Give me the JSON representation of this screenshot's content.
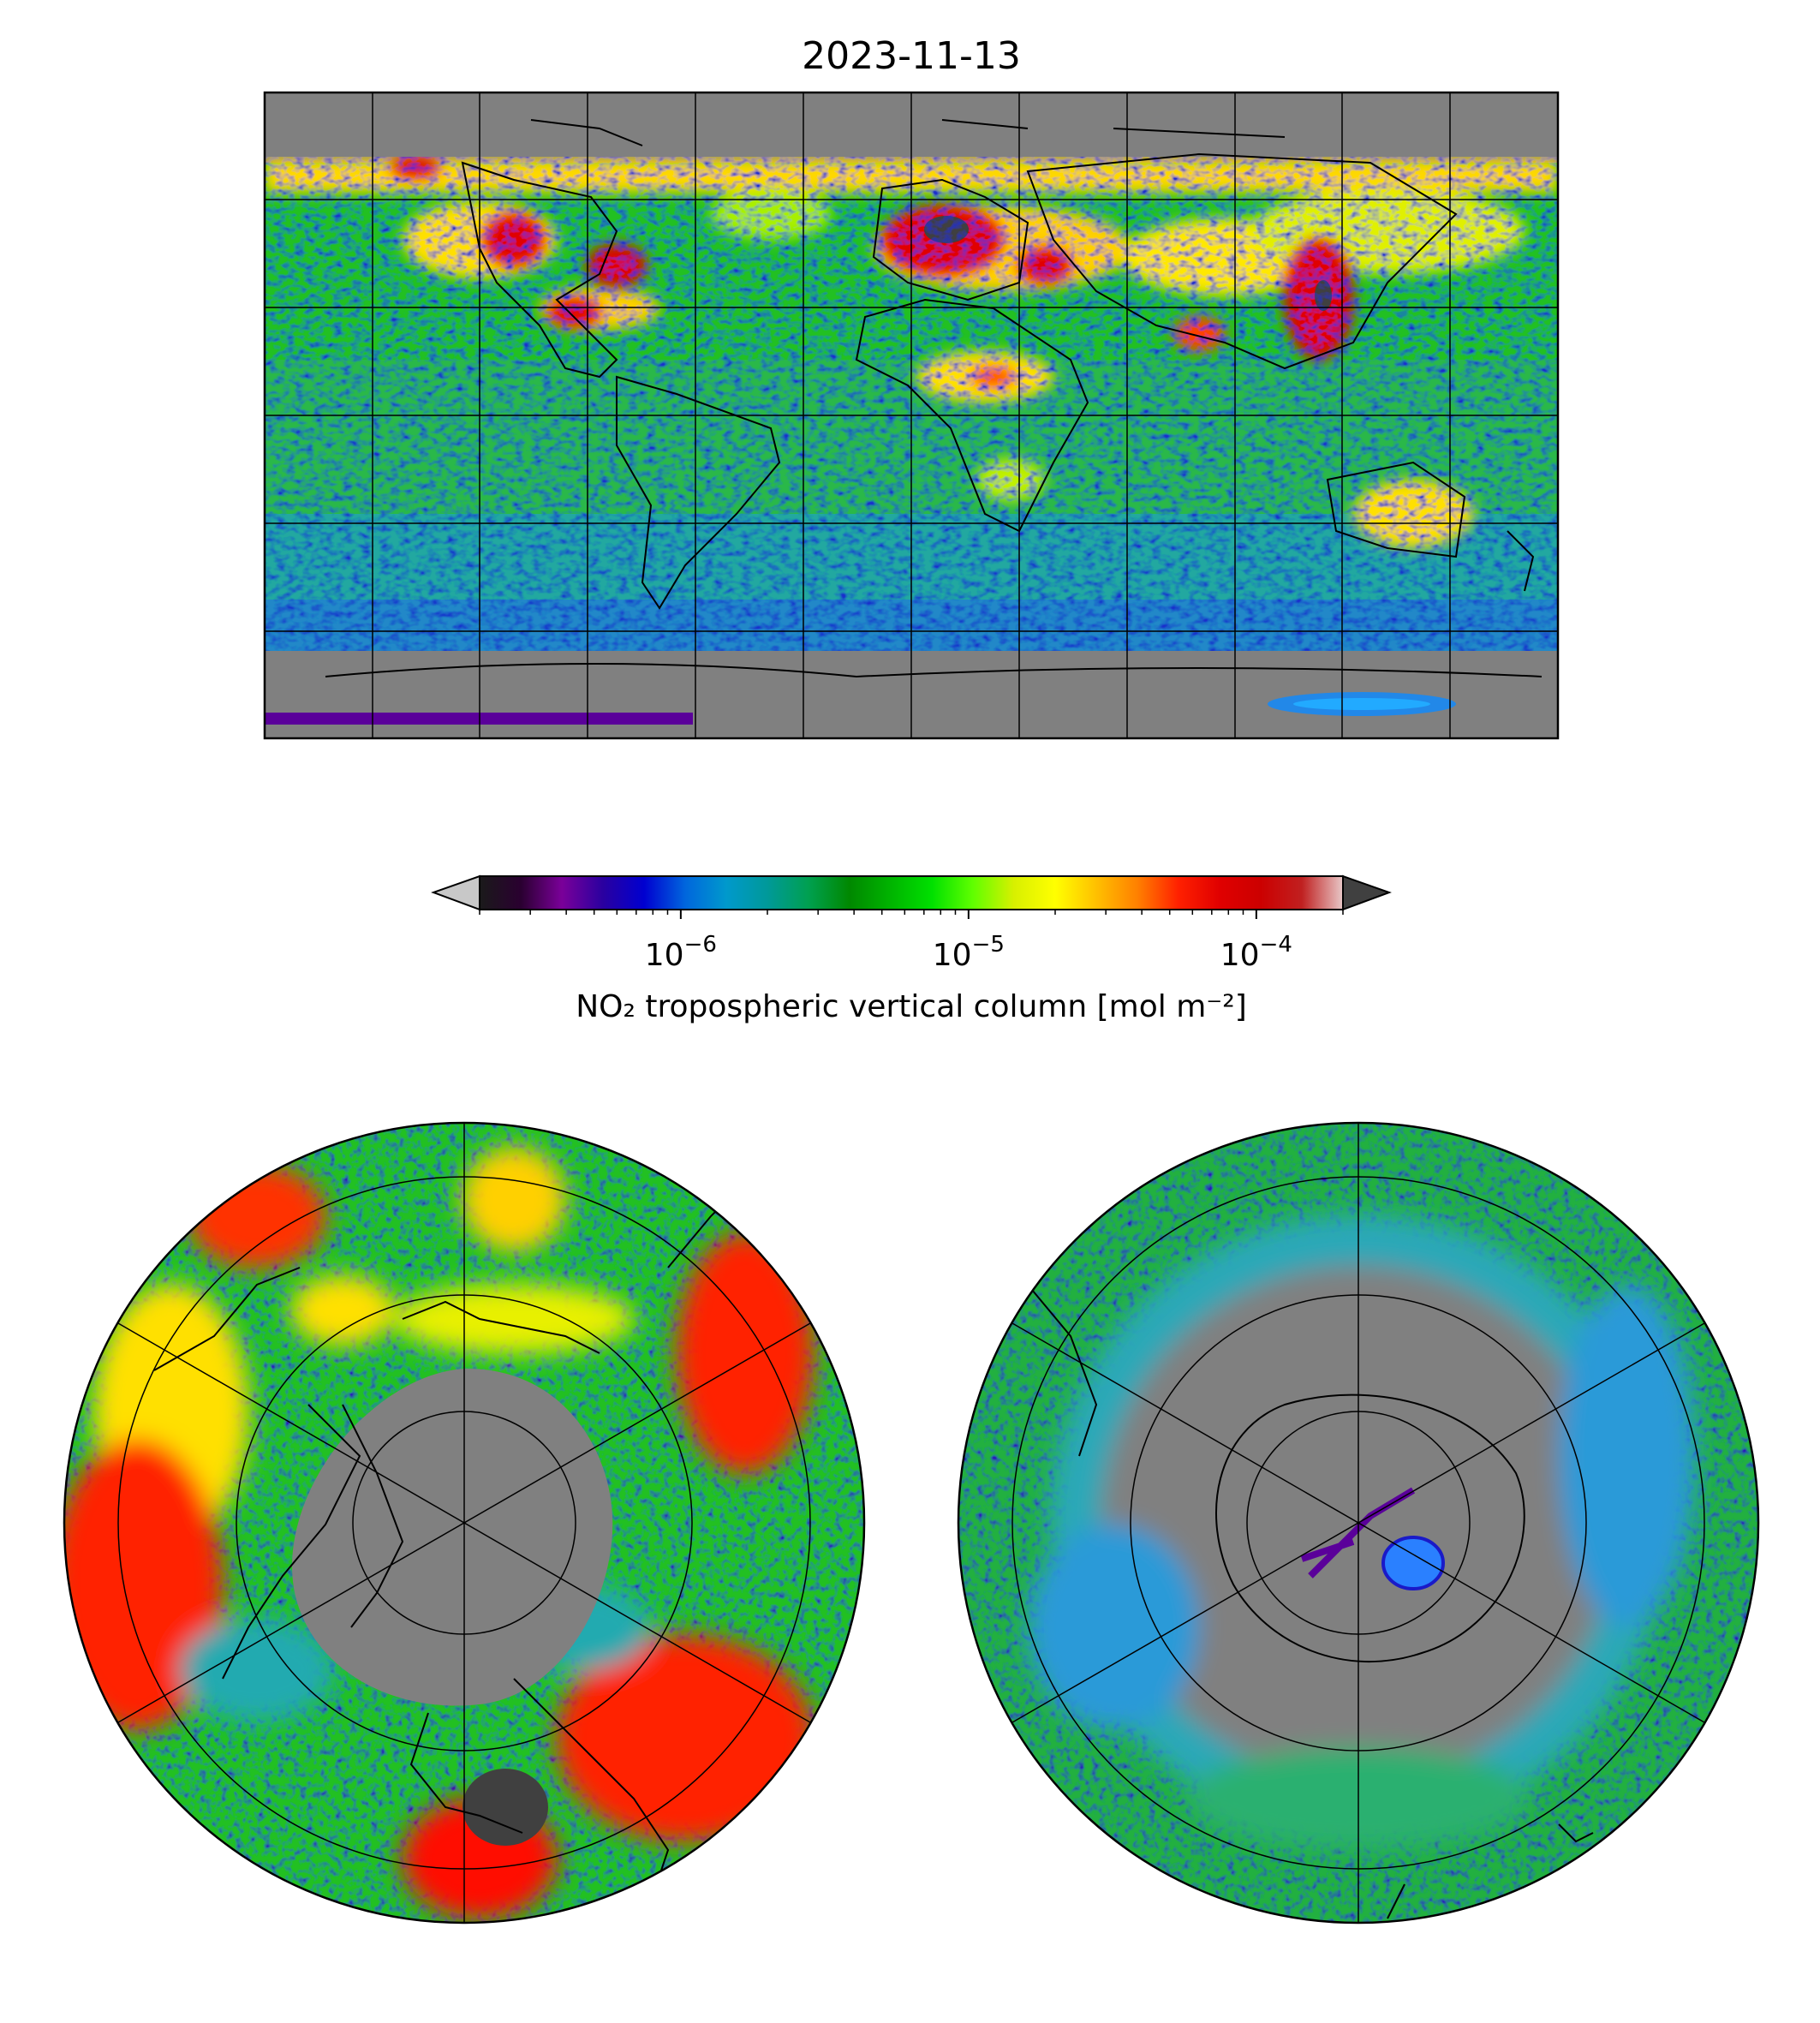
{
  "figure": {
    "title": "2023-11-13"
  },
  "colorbar": {
    "label": "NO₂ tropospheric vertical column [mol m⁻²]",
    "scale": "log",
    "range": [
      2e-07,
      0.0002
    ],
    "extend": "both",
    "ticks": [
      {
        "value": 1e-06,
        "base": "10",
        "exp": "−6"
      },
      {
        "value": 1e-05,
        "base": "10",
        "exp": "−5"
      },
      {
        "value": 0.0001,
        "base": "10",
        "exp": "−4"
      }
    ],
    "colors": [
      "#1a1a1a",
      "#2a0030",
      "#7a0099",
      "#2a00a0",
      "#0000d0",
      "#0066dd",
      "#0099cc",
      "#009999",
      "#00a050",
      "#008800",
      "#00b400",
      "#00e000",
      "#60ff00",
      "#d8f000",
      "#ffff00",
      "#ffc000",
      "#ff8000",
      "#ff2000",
      "#e00000",
      "#cc0000",
      "#c02020",
      "#e8c8c8"
    ],
    "under_color": "#c8c8c8",
    "over_color": "#404040",
    "nodata_color": "#808080"
  },
  "maps": [
    {
      "id": "global",
      "projection": "PlateCarree",
      "graticule_lon": [
        -150,
        -120,
        -90,
        -60,
        -30,
        0,
        30,
        60,
        90,
        120,
        150
      ],
      "graticule_lat": [
        -60,
        -30,
        0,
        30,
        60
      ]
    },
    {
      "id": "north-polar",
      "projection": "North Polar Stereographic",
      "graticule_lat": [
        80,
        60,
        40,
        20
      ],
      "meridians": 6
    },
    {
      "id": "south-polar",
      "projection": "South Polar Stereographic",
      "graticule_lat": [
        -80,
        -60,
        -40,
        -20
      ],
      "meridians": 6
    }
  ]
}
